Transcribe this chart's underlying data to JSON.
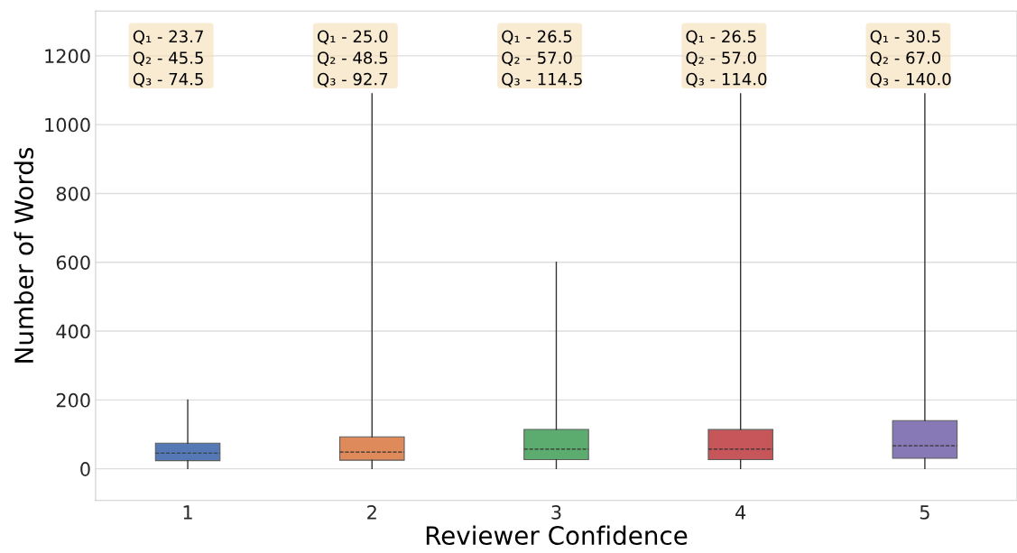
{
  "chart_data": {
    "type": "box",
    "xlabel": "Reviewer Confidence",
    "ylabel": "Number of Words",
    "categories": [
      "1",
      "2",
      "3",
      "4",
      "5"
    ],
    "colors": [
      "#4c72b0",
      "#dd8452",
      "#55a868",
      "#c44e52",
      "#8172b3"
    ],
    "boxes": [
      {
        "low": 1,
        "q1": 23.7,
        "median": 45.5,
        "q3": 74.5,
        "high": 200
      },
      {
        "low": 1,
        "q1": 25.0,
        "median": 48.5,
        "q3": 92.7,
        "high": 1090
      },
      {
        "low": 1,
        "q1": 26.5,
        "median": 57.0,
        "q3": 114.5,
        "high": 600
      },
      {
        "low": 1,
        "q1": 26.5,
        "median": 57.0,
        "q3": 114.0,
        "high": 1090
      },
      {
        "low": 1,
        "q1": 30.5,
        "median": 67.0,
        "q3": 140.0,
        "high": 1090
      }
    ],
    "ylim": [
      -92,
      1330
    ],
    "yticks": [
      0,
      200,
      400,
      600,
      800,
      1000,
      1200
    ],
    "grid": "y",
    "annotations": [
      "Q₁ - 23.7",
      "Q₂ - 45.5",
      "Q₃ - 74.5",
      "Q₁ - 25.0",
      "Q₂ - 48.5",
      "Q₃ - 92.7",
      "Q₁ - 26.5",
      "Q₂ - 57.0",
      "Q₃ - 114.5",
      "Q₁ - 26.5",
      "Q₂ - 57.0",
      "Q₃ - 114.0",
      "Q₁ - 30.5",
      "Q₂ - 67.0",
      "Q₃ - 140.0"
    ]
  }
}
